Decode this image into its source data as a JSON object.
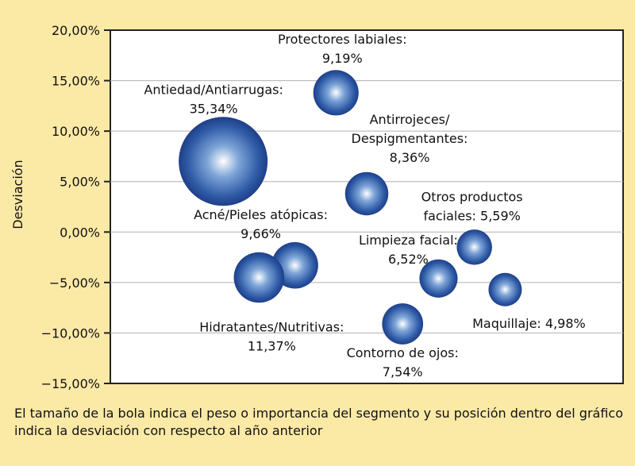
{
  "chart_data": {
    "type": "scatter",
    "ylabel": "Desviación",
    "ylim": [
      -15,
      20
    ],
    "yticks": [
      20,
      15,
      10,
      5,
      0,
      -5,
      -10,
      -15
    ],
    "ytick_labels": [
      "20,00%",
      "15,00%",
      "10,00%",
      "5,00%",
      "0,00%",
      "−5,00%",
      "−10,00%",
      "−15,00%"
    ],
    "grid": true,
    "points": [
      {
        "name": "Antiedad/Antiarrugas:",
        "weight": "35,34%",
        "weight_value": 35.34,
        "x": 1.1,
        "y": 7.0
      },
      {
        "name": "Protectores labiales:",
        "weight": "9,19%",
        "weight_value": 9.19,
        "x": 2.2,
        "y": 13.8
      },
      {
        "name": "Antirrojeces/ Despigmentantes:",
        "weight": "8,36%",
        "weight_value": 8.36,
        "x": 2.5,
        "y": 3.8
      },
      {
        "name": "Otros productos faciales:",
        "weight": "5,59%",
        "weight_value": 5.59,
        "x": 3.55,
        "y": -1.5
      },
      {
        "name": "Acné/Pieles atópicas:",
        "weight": "9,66%",
        "weight_value": 9.66,
        "x": 1.8,
        "y": -3.3
      },
      {
        "name": "Hidratantes/Nutritivas:",
        "weight": "11,37%",
        "weight_value": 11.37,
        "x": 1.45,
        "y": -4.5
      },
      {
        "name": "Limpieza facial:",
        "weight": "6,52%",
        "weight_value": 6.52,
        "x": 3.2,
        "y": -4.6
      },
      {
        "name": "Maquillaje:",
        "weight": "4,98%",
        "weight_value": 4.98,
        "x": 3.85,
        "y": -5.7
      },
      {
        "name": "Contorno de ojos:",
        "weight": "7,54%",
        "weight_value": 7.54,
        "x": 2.85,
        "y": -9.1
      }
    ]
  },
  "caption": "El tamaño de la bola indica el peso o importancia del segmento y su posición dentro del gráfico indica la desviación con respecto al año anterior"
}
